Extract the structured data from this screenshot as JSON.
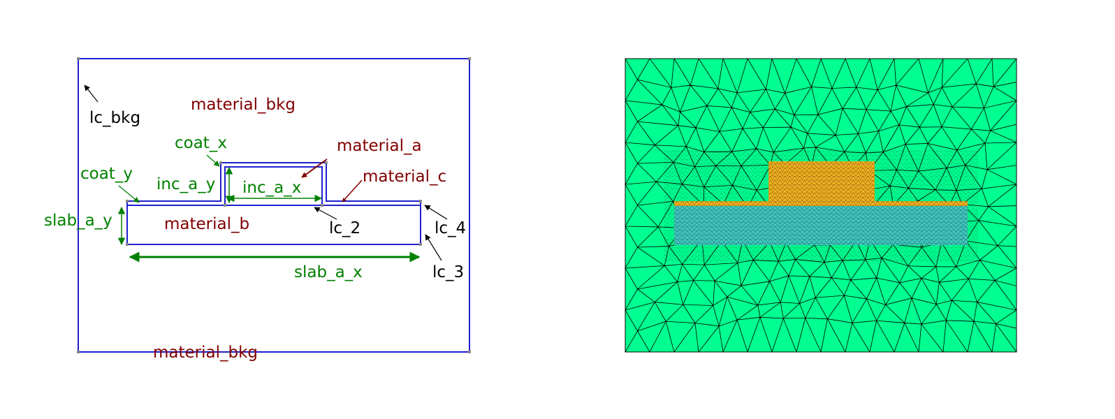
{
  "schematic": {
    "material_labels": {
      "bkg_top": "material_bkg",
      "bkg_bottom": "material_bkg",
      "a": "material_a",
      "b": "material_b",
      "c": "material_c"
    },
    "dimension_labels": {
      "coat_x": "coat_x",
      "coat_y": "coat_y",
      "inc_a_y": "inc_a_y",
      "inc_a_x": "inc_a_x",
      "slab_a_y": "slab_a_y",
      "slab_a_x": "slab_a_x"
    },
    "mesh_size_labels": {
      "lc_bkg": "lc_bkg",
      "lc_2": "lc_2",
      "lc_3": "lc_3",
      "lc_4": "lc_4"
    }
  },
  "colors": {
    "outline": "#1f1fcf",
    "material_text": "#800000",
    "dimension_text": "#008000",
    "mesh_size_text": "#000000",
    "mesh_background": "#00ff90",
    "mesh_inclusion": "#f0b020",
    "mesh_slab": "#40c8c0"
  }
}
